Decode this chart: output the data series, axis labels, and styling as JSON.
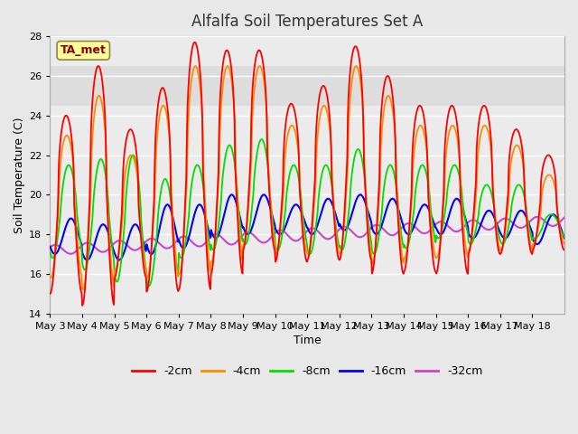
{
  "title": "Alfalfa Soil Temperatures Set A",
  "xlabel": "Time",
  "ylabel": "Soil Temperature (C)",
  "ylim": [
    14,
    28
  ],
  "annotation": "TA_met",
  "annotation_color": "#8B0000",
  "annotation_bg": "#FFFF99",
  "fig_bg": "#E8E8E8",
  "plot_bg": "#EBEBEB",
  "grid_color": "#FFFFFF",
  "line_colors": {
    "-2cm": "#FF0000",
    "-4cm": "#FF8C00",
    "-8cm": "#00DD00",
    "-16cm": "#0000FF",
    "-32cm": "#CC44CC"
  },
  "legend_labels": [
    "-2cm",
    "-4cm",
    "-8cm",
    "-16cm",
    "-32cm"
  ],
  "tick_labels": [
    "May 3",
    "May 4",
    "May 5",
    "May 6",
    "May 7",
    "May 8",
    "May 9",
    "May 10",
    "May 11",
    "May 12",
    "May 13",
    "May 14",
    "May 15",
    "May 16",
    "May 17",
    "May 18"
  ],
  "yticks": [
    14,
    16,
    18,
    20,
    22,
    24,
    26,
    28
  ],
  "shaded_band": [
    24.5,
    26.5
  ]
}
